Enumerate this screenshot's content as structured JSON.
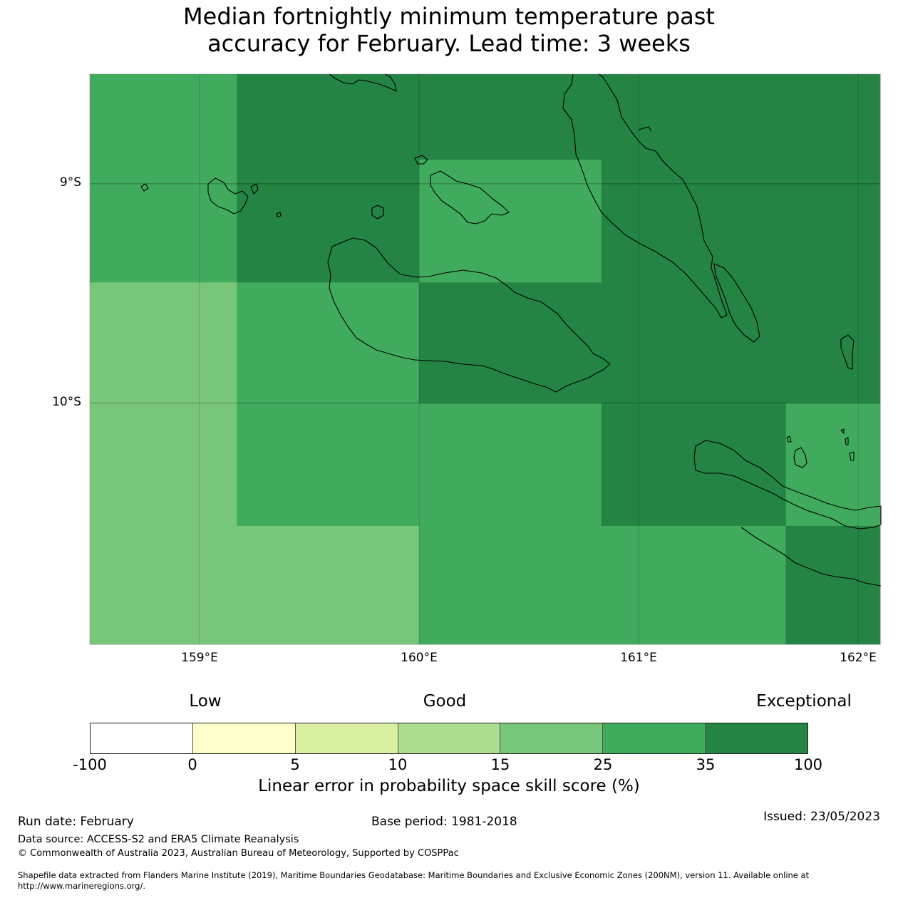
{
  "title": {
    "line1": "Median fortnightly minimum temperature past",
    "line2": "accuracy for February. Lead time: 3 weeks"
  },
  "map": {
    "x_ticks": [
      "159°E",
      "160°E",
      "161°E",
      "162°E"
    ],
    "y_ticks": [
      "9°S",
      "10°S"
    ],
    "lon_range": [
      158.5,
      162.1
    ],
    "lat_range": [
      -8.5,
      -11.1
    ],
    "grid": true,
    "cells": [
      {
        "lon": [
          158.5,
          159.17
        ],
        "lat": [
          -8.5,
          -8.95
        ],
        "category": 25
      },
      {
        "lon": [
          158.5,
          159.17
        ],
        "lat": [
          -8.95,
          -9.45
        ],
        "category": 25
      },
      {
        "lon": [
          159.17,
          160.0
        ],
        "lat": [
          -8.5,
          -8.95
        ],
        "category": 35
      },
      {
        "lon": [
          159.17,
          160.0
        ],
        "lat": [
          -8.95,
          -9.45
        ],
        "category": 35
      },
      {
        "lon": [
          160.0,
          160.83
        ],
        "lat": [
          -8.5,
          -8.89
        ],
        "category": 35
      },
      {
        "lon": [
          160.0,
          160.83
        ],
        "lat": [
          -8.89,
          -9.45
        ],
        "category": 25
      },
      {
        "lon": [
          160.83,
          162.1
        ],
        "lat": [
          -8.5,
          -9.45
        ],
        "category": 35
      },
      {
        "lon": [
          158.5,
          159.17
        ],
        "lat": [
          -9.45,
          -11.1
        ],
        "category": 15
      },
      {
        "lon": [
          159.17,
          160.0
        ],
        "lat": [
          -9.45,
          -10.0
        ],
        "category": 25
      },
      {
        "lon": [
          160.0,
          162.1
        ],
        "lat": [
          -9.45,
          -10.0
        ],
        "category": 35
      },
      {
        "lon": [
          159.17,
          160.0
        ],
        "lat": [
          -10.0,
          -10.56
        ],
        "category": 25
      },
      {
        "lon": [
          159.17,
          160.0
        ],
        "lat": [
          -10.56,
          -11.1
        ],
        "category": 15
      },
      {
        "lon": [
          160.0,
          160.83
        ],
        "lat": [
          -10.0,
          -11.1
        ],
        "category": 25
      },
      {
        "lon": [
          160.83,
          161.67
        ],
        "lat": [
          -10.0,
          -10.56
        ],
        "category": 35
      },
      {
        "lon": [
          160.83,
          161.67
        ],
        "lat": [
          -10.56,
          -11.1
        ],
        "category": 25
      },
      {
        "lon": [
          161.67,
          162.1
        ],
        "lat": [
          -10.0,
          -10.56
        ],
        "category": 25
      },
      {
        "lon": [
          161.67,
          162.1
        ],
        "lat": [
          -10.56,
          -11.1
        ],
        "category": 35
      }
    ]
  },
  "legend": {
    "categories": [
      "Low",
      "Good",
      "Exceptional"
    ],
    "tick_labels": [
      "-100",
      "0",
      "5",
      "10",
      "15",
      "25",
      "35",
      "100"
    ],
    "colors": [
      "#ffffff",
      "#ffffcc",
      "#d9f0a3",
      "#addd8e",
      "#78c679",
      "#41ab5d",
      "#238443"
    ],
    "title": "Linear error in probability space skill score (%)"
  },
  "footer": {
    "run_date": "Run date: February",
    "base_period": "Base period: 1981-2018",
    "issued": "Issued: 23/05/2023",
    "data_source": "Data source: ACCESS-S2 and ERA5 Climate Reanalysis",
    "copyright": "© Commonwealth of Australia 2023, Australian Bureau of Meteorology, Supported by COSPPac",
    "shapefile_line1": "Shapefile data extracted from Flanders Marine Institute (2019), Maritime Boundaries Geodatabase: Maritime Boundaries and Exclusive Economic Zones (200NM), version 11. Available online at",
    "shapefile_line2": "http://www.marineregions.org/."
  }
}
